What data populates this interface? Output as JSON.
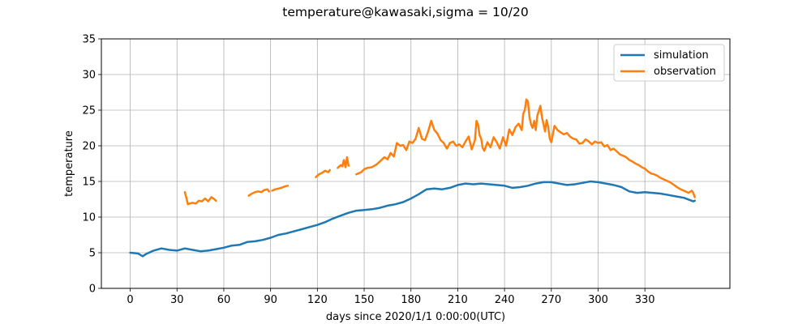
{
  "chart_data": {
    "type": "line",
    "title": "temperature@kawasaki,sigma = 10/20",
    "xlabel": "days since 2020/1/1 0:00:00(UTC)",
    "ylabel": "temperature",
    "xlim": [
      -18.5,
      384.5
    ],
    "ylim": [
      0,
      35
    ],
    "xticks": [
      0,
      30,
      60,
      90,
      120,
      150,
      180,
      210,
      240,
      270,
      300,
      330
    ],
    "yticks": [
      0,
      5,
      10,
      15,
      20,
      25,
      30,
      35
    ],
    "grid": true,
    "legend_position": "top-right",
    "series": [
      {
        "name": "simulation",
        "color": "#1f77b4",
        "x": [
          0,
          5,
          8,
          10,
          15,
          20,
          25,
          30,
          35,
          40,
          45,
          50,
          55,
          60,
          65,
          70,
          75,
          80,
          85,
          90,
          95,
          100,
          105,
          110,
          115,
          120,
          125,
          130,
          135,
          140,
          145,
          150,
          155,
          160,
          165,
          170,
          175,
          180,
          185,
          190,
          195,
          200,
          205,
          210,
          215,
          220,
          225,
          230,
          235,
          240,
          245,
          250,
          255,
          260,
          265,
          270,
          275,
          280,
          285,
          290,
          295,
          300,
          305,
          310,
          315,
          320,
          325,
          330,
          335,
          340,
          345,
          350,
          355,
          361,
          362
        ],
        "y": [
          5.0,
          4.9,
          4.5,
          4.8,
          5.3,
          5.6,
          5.4,
          5.3,
          5.6,
          5.4,
          5.2,
          5.3,
          5.5,
          5.7,
          6.0,
          6.1,
          6.5,
          6.6,
          6.8,
          7.1,
          7.5,
          7.7,
          8.0,
          8.3,
          8.6,
          8.9,
          9.3,
          9.8,
          10.2,
          10.6,
          10.9,
          11.0,
          11.1,
          11.3,
          11.6,
          11.8,
          12.1,
          12.6,
          13.2,
          13.9,
          14.0,
          13.9,
          14.1,
          14.5,
          14.7,
          14.6,
          14.7,
          14.6,
          14.5,
          14.4,
          14.1,
          14.2,
          14.4,
          14.7,
          14.9,
          14.9,
          14.7,
          14.5,
          14.6,
          14.8,
          15.0,
          14.9,
          14.7,
          14.5,
          14.2,
          13.6,
          13.4,
          13.5,
          13.4,
          13.3,
          13.1,
          12.9,
          12.7,
          12.2,
          12.3
        ]
      },
      {
        "name": "observation",
        "color": "#ff7f0e",
        "segments": [
          {
            "x": [
              35,
              36,
              37,
              38,
              40,
              42,
              44,
              46,
              48,
              50,
              52,
              54,
              55
            ],
            "y": [
              13.5,
              12.7,
              11.8,
              11.9,
              12.0,
              11.9,
              12.3,
              12.2,
              12.6,
              12.2,
              12.8,
              12.5,
              12.3
            ]
          },
          {
            "x": [
              76,
              78,
              80,
              82,
              84,
              86,
              88,
              89
            ],
            "y": [
              13.0,
              13.3,
              13.5,
              13.6,
              13.5,
              13.8,
              13.9,
              13.6
            ]
          },
          {
            "x": [
              91,
              93,
              95,
              97,
              99,
              101
            ],
            "y": [
              13.7,
              13.9,
              14.0,
              14.1,
              14.3,
              14.4
            ]
          },
          {
            "x": [
              119,
              121,
              123,
              125,
              127,
              128
            ],
            "y": [
              15.6,
              16.0,
              16.2,
              16.5,
              16.3,
              16.6
            ]
          },
          {
            "x": [
              133,
              135,
              136,
              137,
              138,
              139,
              140
            ],
            "y": [
              16.9,
              17.3,
              17.1,
              18.0,
              17.0,
              18.4,
              17.2
            ]
          },
          {
            "x": [
              145,
              148,
              150,
              152,
              155,
              158,
              160,
              163,
              165,
              167,
              169,
              171,
              173,
              175,
              177,
              179,
              181,
              183,
              185,
              187,
              189,
              191,
              193,
              195,
              197,
              199,
              201,
              203,
              205,
              207,
              209,
              211,
              213,
              215,
              217,
              219,
              221,
              222,
              223,
              224,
              225,
              226,
              227,
              229,
              231,
              233,
              235,
              237,
              239,
              241,
              243,
              245,
              247,
              249,
              251,
              252,
              253,
              254,
              255,
              256,
              257,
              258,
              259,
              260,
              261,
              262,
              263,
              264,
              265,
              266,
              267,
              268,
              269,
              270,
              272,
              274,
              276,
              278,
              280,
              282,
              284,
              286,
              288,
              290,
              292,
              294,
              296,
              298,
              300,
              302,
              304,
              306,
              308,
              310,
              312,
              314,
              316,
              318,
              320,
              322,
              324,
              326,
              328,
              330,
              332,
              334,
              336,
              338,
              340,
              342,
              344,
              346,
              348,
              350,
              352,
              354,
              356,
              358,
              360,
              361,
              362
            ],
            "y": [
              16.0,
              16.3,
              16.7,
              16.9,
              17.0,
              17.4,
              17.8,
              18.4,
              18.1,
              19.0,
              18.5,
              20.4,
              20.0,
              20.1,
              19.4,
              20.6,
              20.4,
              21.0,
              22.5,
              21.0,
              20.8,
              22.0,
              23.5,
              22.2,
              21.7,
              20.8,
              20.4,
              19.6,
              20.4,
              20.6,
              20.0,
              20.2,
              19.8,
              20.6,
              21.3,
              19.5,
              20.8,
              23.5,
              23.0,
              21.5,
              21.0,
              19.7,
              19.3,
              20.5,
              19.8,
              21.2,
              20.5,
              19.6,
              21.2,
              20.0,
              22.3,
              21.5,
              22.6,
              23.1,
              22.2,
              24.5,
              25.0,
              26.5,
              26.2,
              24.0,
              23.0,
              22.5,
              23.5,
              22.2,
              24.2,
              24.9,
              25.6,
              24.0,
              23.0,
              22.0,
              23.6,
              22.6,
              21.0,
              20.5,
              22.8,
              22.2,
              21.9,
              21.6,
              21.8,
              21.3,
              21.0,
              20.9,
              20.3,
              20.4,
              20.9,
              20.6,
              20.2,
              20.6,
              20.4,
              20.5,
              19.9,
              20.1,
              19.4,
              19.6,
              19.2,
              18.8,
              18.6,
              18.4,
              18.0,
              17.8,
              17.5,
              17.3,
              17.0,
              16.8,
              16.4,
              16.1,
              16.0,
              15.8,
              15.5,
              15.3,
              15.1,
              14.9,
              14.6,
              14.3,
              14.0,
              13.8,
              13.6,
              13.4,
              13.7,
              13.4,
              12.8
            ]
          }
        ]
      }
    ]
  }
}
